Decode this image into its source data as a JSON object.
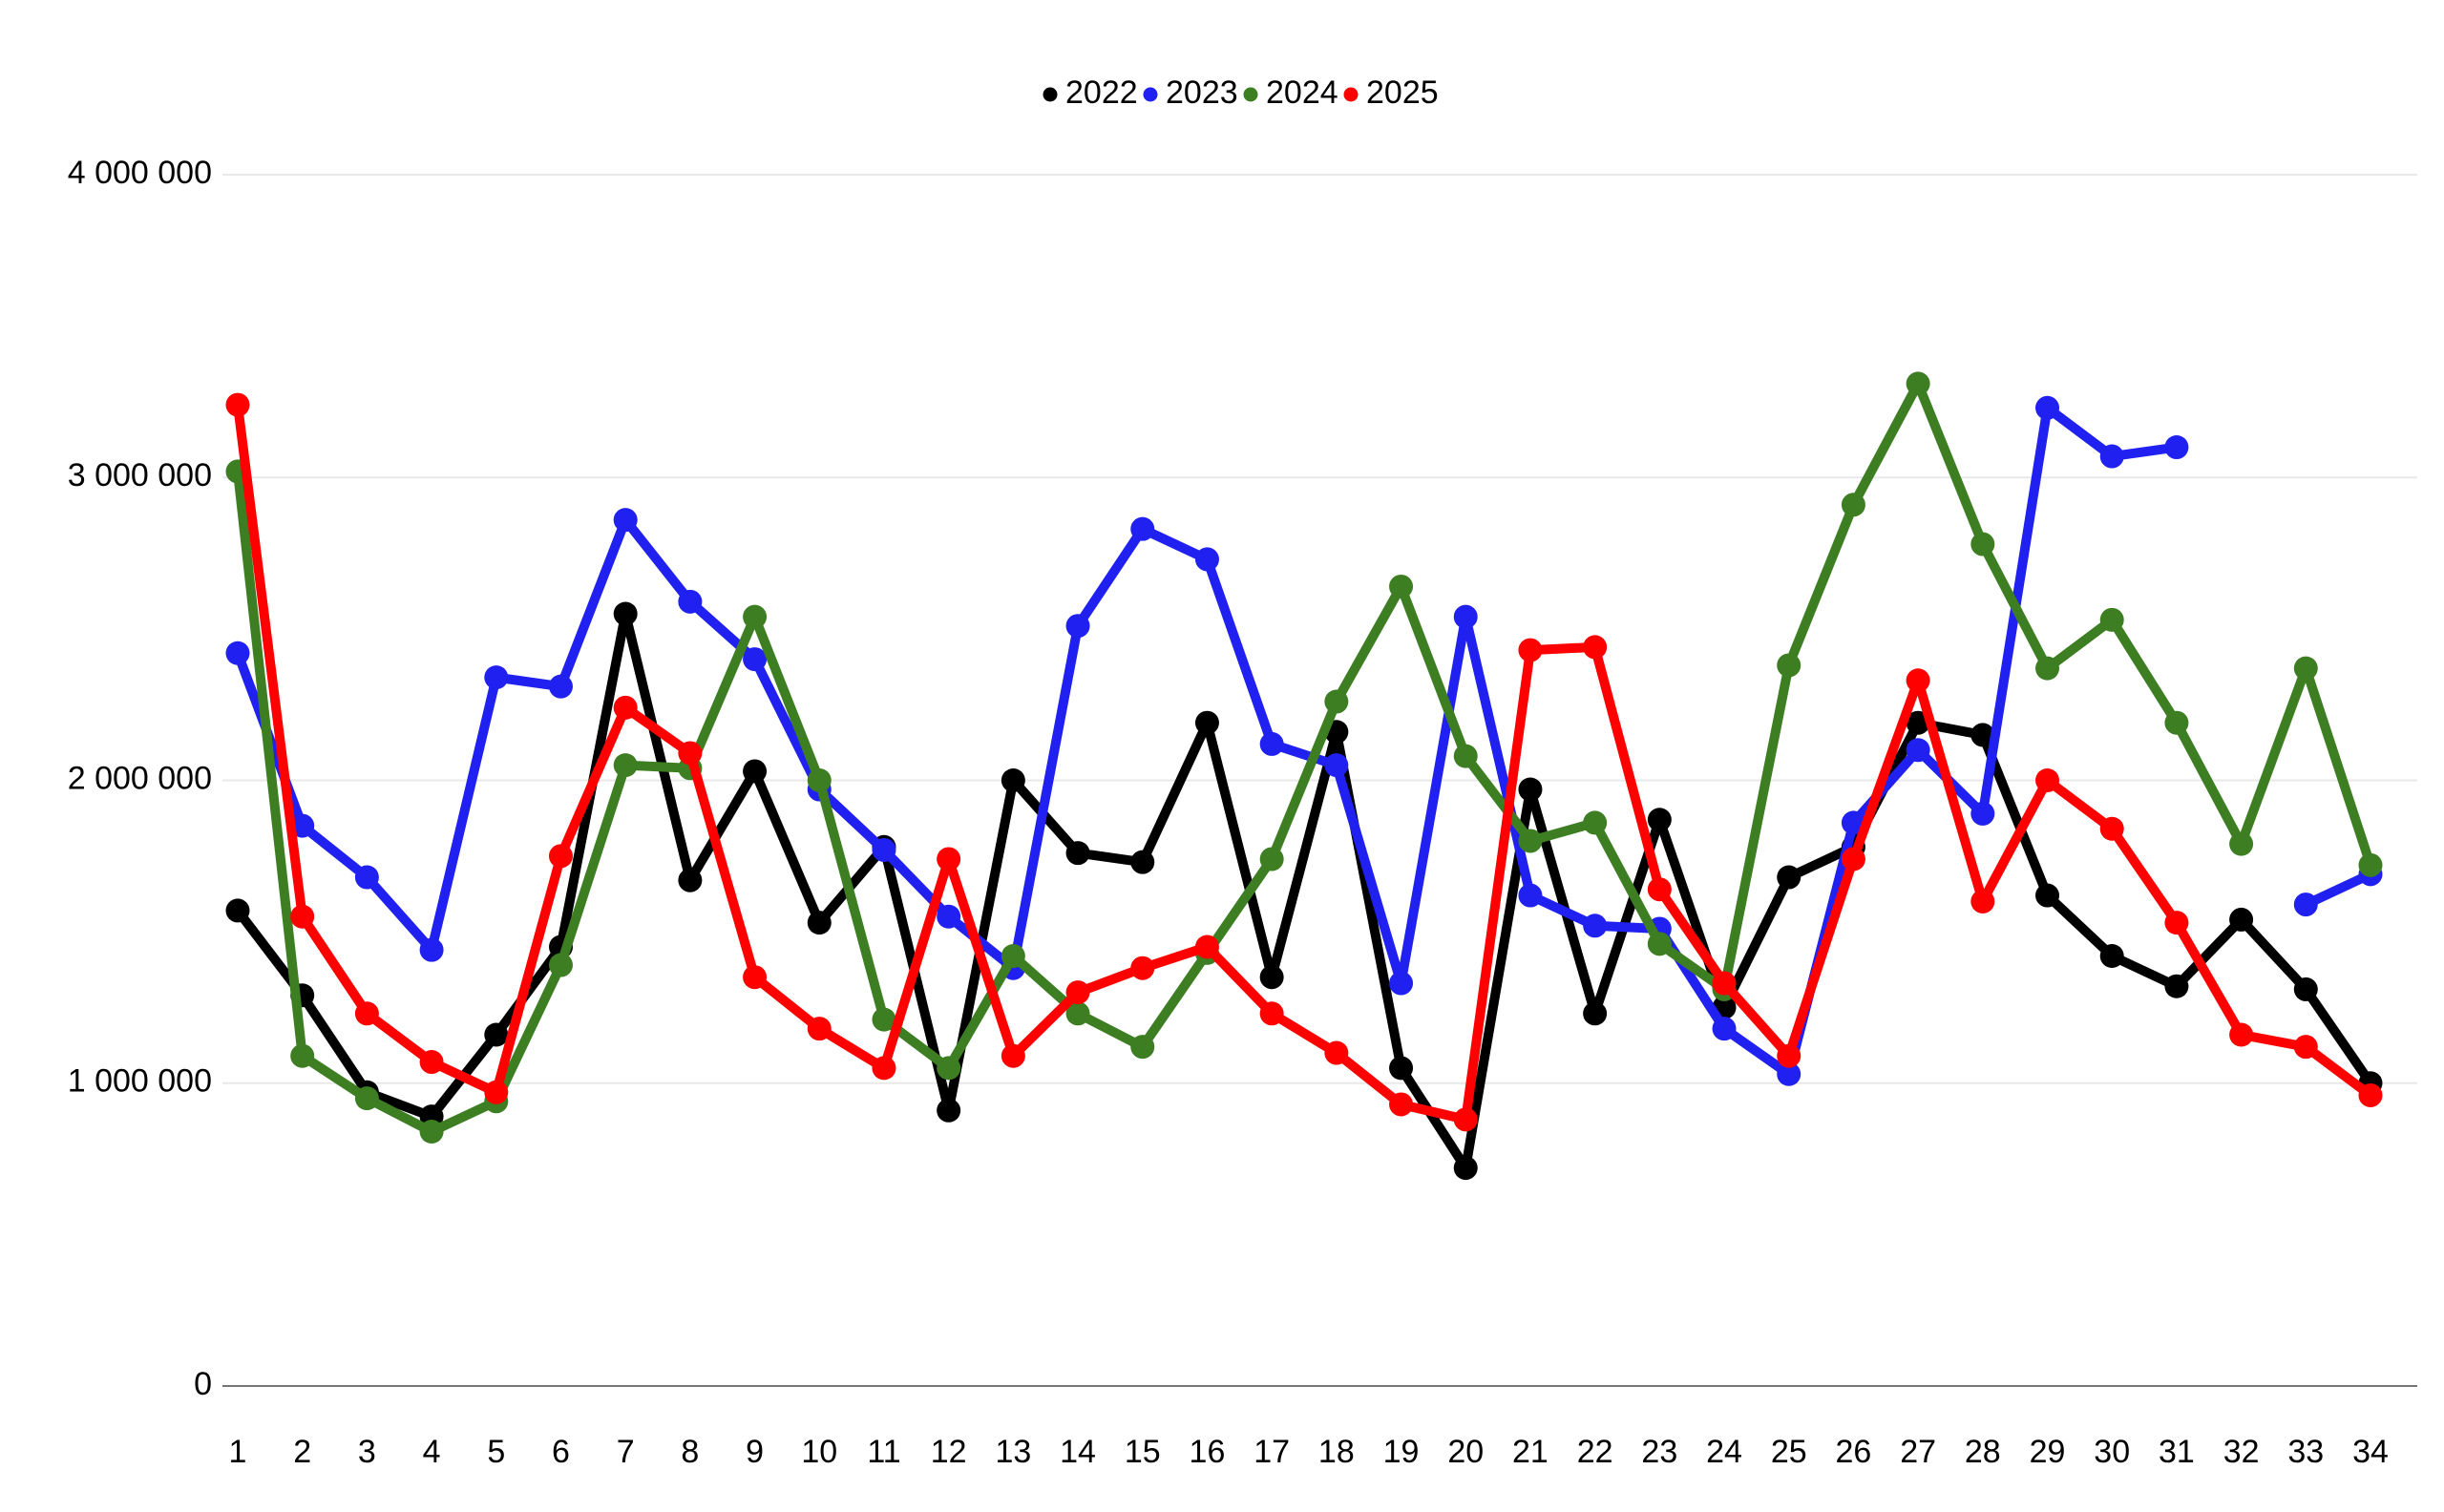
{
  "chart_data": {
    "type": "line",
    "title": "",
    "xlabel": "",
    "ylabel": "",
    "legend_position": "top-center",
    "grid": true,
    "background_color": "#ffffff",
    "gridline_color": "#e8e8e8",
    "axis_line_color": "#757575",
    "label_color": "#000000",
    "categories": [
      1,
      2,
      3,
      4,
      5,
      6,
      7,
      8,
      9,
      10,
      11,
      12,
      13,
      14,
      15,
      16,
      17,
      18,
      19,
      20,
      21,
      22,
      23,
      24,
      25,
      26,
      27,
      28,
      29,
      30,
      31,
      32,
      33,
      34
    ],
    "y_axis": {
      "min": 0,
      "max": 4000000,
      "tick_interval": 1000000,
      "tick_labels": [
        "0",
        "1 000 000",
        "2 000 000",
        "3 000 000",
        "4 000 000"
      ]
    },
    "series": [
      {
        "name": "2022",
        "color": "#000000",
        "values": [
          1570000,
          1290000,
          970000,
          890000,
          1160000,
          1450000,
          2550000,
          1670000,
          2030000,
          1530000,
          1780000,
          910000,
          2000000,
          1760000,
          1730000,
          2190000,
          1350000,
          2160000,
          1050000,
          720000,
          1970000,
          1230000,
          1870000,
          1250000,
          1680000,
          1780000,
          2190000,
          2150000,
          1620000,
          1420000,
          1320000,
          1540000,
          1310000,
          1000000
        ]
      },
      {
        "name": "2023",
        "color": "#2020f0",
        "values": [
          2420000,
          1850000,
          1680000,
          1440000,
          2340000,
          2310000,
          2860000,
          2590000,
          2400000,
          1970000,
          1770000,
          1550000,
          1380000,
          2510000,
          2830000,
          2730000,
          2120000,
          2050000,
          1330000,
          2540000,
          1620000,
          1520000,
          1510000,
          1180000,
          1030000,
          1860000,
          2100000,
          1890000,
          3230000,
          3070000,
          3100000,
          null,
          1590000,
          1690000
        ]
      },
      {
        "name": "2024",
        "color": "#3d7e23",
        "values": [
          3020000,
          1090000,
          950000,
          840000,
          940000,
          1390000,
          2050000,
          2040000,
          2540000,
          2000000,
          1210000,
          1050000,
          1420000,
          1230000,
          1120000,
          1430000,
          1740000,
          2260000,
          2640000,
          2080000,
          1800000,
          1860000,
          1460000,
          1310000,
          2380000,
          2910000,
          3310000,
          2780000,
          2370000,
          2530000,
          2190000,
          1790000,
          2370000,
          1720000
        ]
      },
      {
        "name": "2025",
        "color": "#fe0000",
        "values": [
          3240000,
          1550000,
          1230000,
          1070000,
          970000,
          1750000,
          2240000,
          2090000,
          1350000,
          1180000,
          1050000,
          1740000,
          1090000,
          1300000,
          1380000,
          1450000,
          1230000,
          1100000,
          930000,
          880000,
          2430000,
          2440000,
          1640000,
          1330000,
          1090000,
          1740000,
          2330000,
          1600000,
          2000000,
          1840000,
          1530000,
          1160000,
          1120000,
          960000
        ]
      }
    ]
  }
}
